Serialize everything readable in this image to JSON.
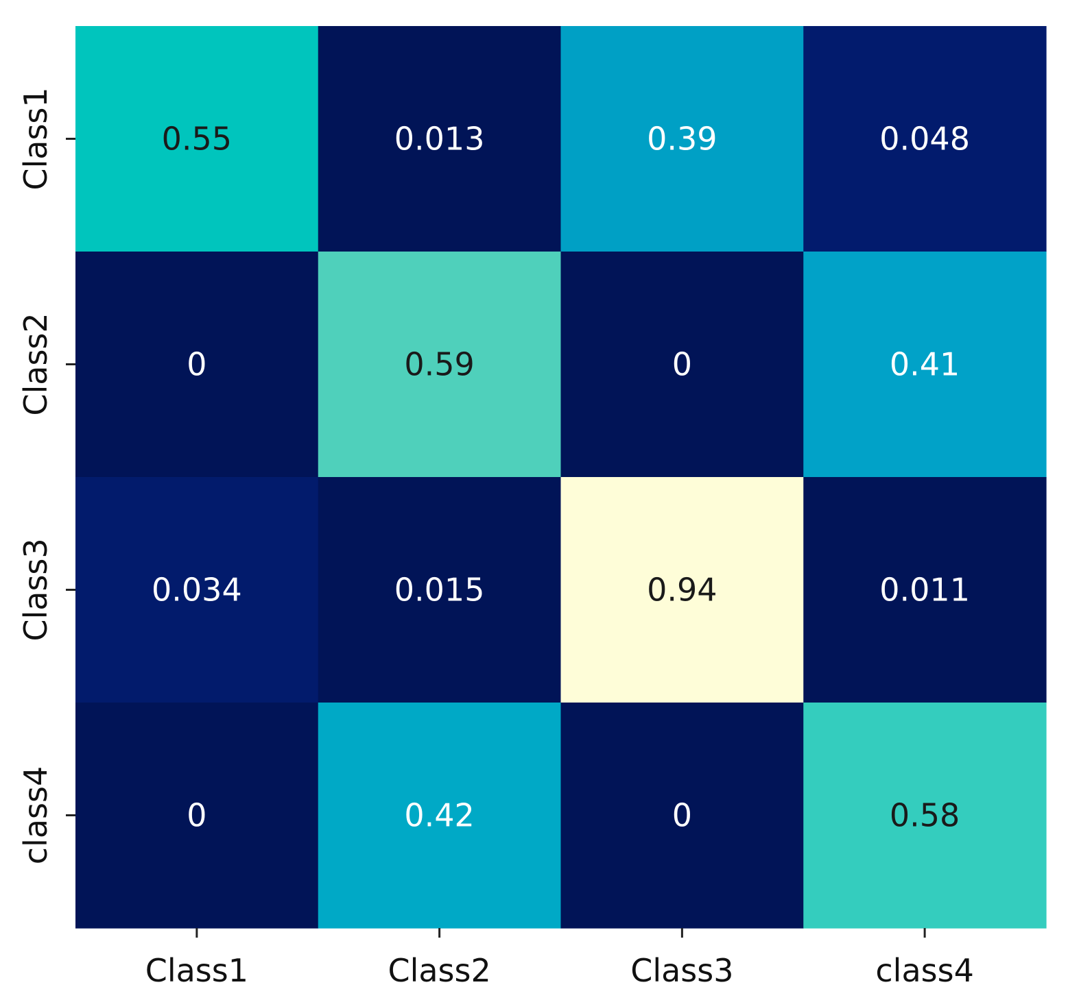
{
  "chart_data": {
    "type": "heatmap",
    "title": "",
    "xlabel": "",
    "ylabel": "",
    "x_categories": [
      "Class1",
      "Class2",
      "Class3",
      "class4"
    ],
    "y_categories": [
      "Class1",
      "Class2",
      "Class3",
      "class4"
    ],
    "values": [
      [
        0.55,
        0.013,
        0.39,
        0.048
      ],
      [
        0,
        0.59,
        0,
        0.41
      ],
      [
        0.034,
        0.015,
        0.94,
        0.011
      ],
      [
        0,
        0.42,
        0,
        0.58
      ]
    ],
    "value_labels": [
      [
        "0.55",
        "0.013",
        "0.39",
        "0.048"
      ],
      [
        "0",
        "0.59",
        "0",
        "0.41"
      ],
      [
        "0.034",
        "0.015",
        "0.94",
        "0.011"
      ],
      [
        "0",
        "0.42",
        "0",
        "0.58"
      ]
    ],
    "cell_colors": [
      [
        "#00c5bd",
        "#011457",
        "#00a0c5",
        "#021b6d"
      ],
      [
        "#011457",
        "#4fd0bb",
        "#011457",
        "#01a2c8"
      ],
      [
        "#021b6c",
        "#011457",
        "#fefdd8",
        "#011457"
      ],
      [
        "#011457",
        "#00a9c6",
        "#011457",
        "#34cdbe"
      ]
    ],
    "label_colors": [
      [
        "#1a1a1a",
        "#ffffff",
        "#ffffff",
        "#ffffff"
      ],
      [
        "#ffffff",
        "#1a1a1a",
        "#ffffff",
        "#ffffff"
      ],
      [
        "#ffffff",
        "#ffffff",
        "#1a1a1a",
        "#ffffff"
      ],
      [
        "#ffffff",
        "#ffffff",
        "#ffffff",
        "#1a1a1a"
      ]
    ],
    "colormap": "YlGnBu",
    "colorbar": false,
    "grid": false
  }
}
